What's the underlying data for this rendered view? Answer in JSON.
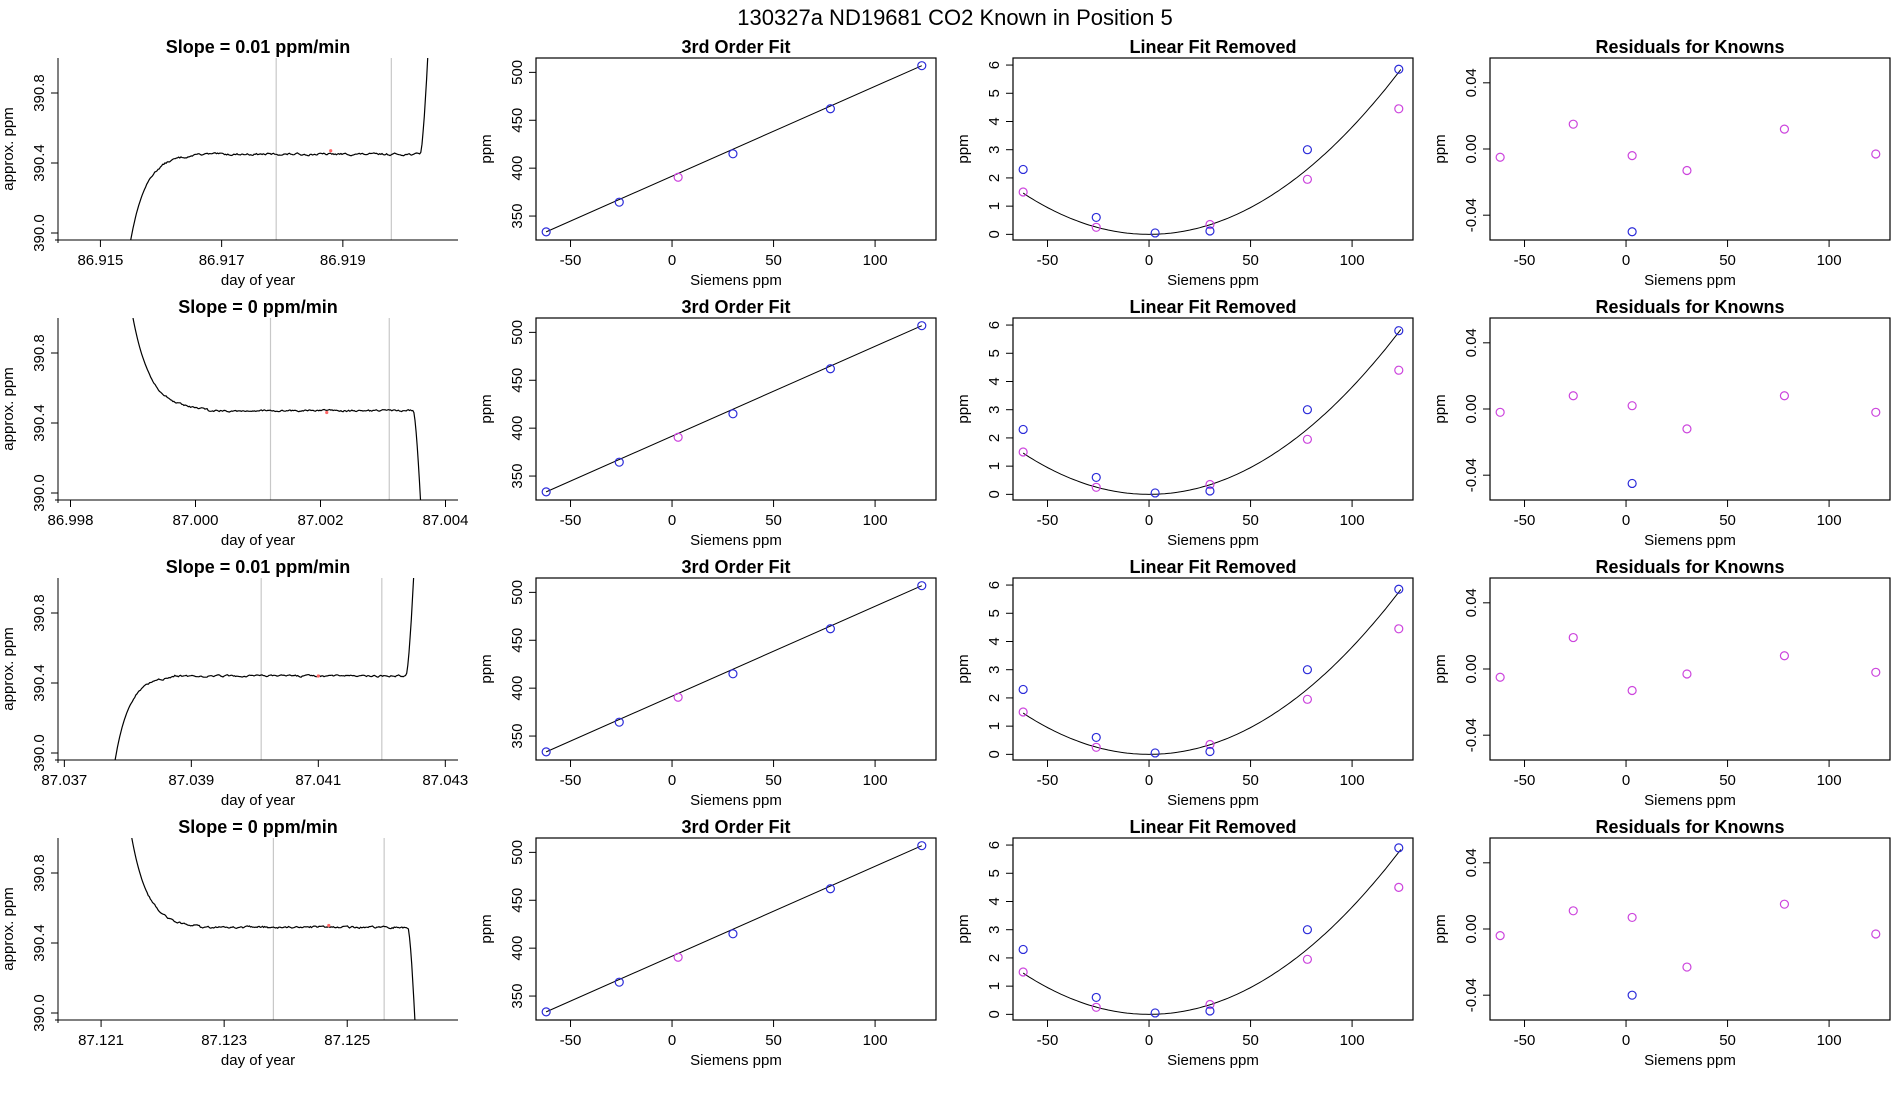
{
  "main_title": "130327a      ND19681     CO2 Known in Position  5",
  "colors": {
    "blue": "#2b2bd9",
    "magenta": "#cc44dd",
    "trace": "#000000",
    "vline": "#c8c8c8",
    "red_dot": "#ff6666"
  },
  "chart_data": [
    {
      "id": "r1-time",
      "type": "line",
      "title": "Slope =  0.01  ppm/min",
      "xlabel": "day of year",
      "ylabel": "approx. ppm",
      "xlim": [
        86.9143,
        86.9209
      ],
      "ylim": [
        389.96,
        391.0
      ],
      "xticks": [
        86.915,
        86.917,
        86.919
      ],
      "xtick_labels": [
        "86.915",
        "86.917",
        "86.919"
      ],
      "yticks": [
        390.0,
        390.4,
        390.8
      ],
      "ytick_labels": [
        "390.0",
        "390.4",
        "390.8"
      ],
      "shape": "rise",
      "x_start": 86.9155,
      "x_end": 86.9204,
      "level": 390.45,
      "start_y": 389.96,
      "end_y": 391.0,
      "rise_frac": 0.22,
      "noise": 0.012,
      "vlines": [
        86.9179,
        86.9198
      ],
      "marker": [
        86.9188,
        390.47
      ]
    },
    {
      "id": "r1-fit",
      "type": "scatter",
      "title": "3rd Order Fit",
      "xlabel": "Siemens ppm",
      "ylabel": "ppm",
      "xlim": [
        -67,
        130
      ],
      "ylim": [
        325,
        515
      ],
      "xticks": [
        -50,
        0,
        50,
        100
      ],
      "xtick_labels": [
        "-50",
        "0",
        "50",
        "100"
      ],
      "yticks": [
        350,
        400,
        450,
        500
      ],
      "ytick_labels": [
        "350",
        "400",
        "450",
        "500"
      ],
      "line": [
        [
          -62,
          333.5
        ],
        [
          123,
          507
        ]
      ],
      "points": [
        [
          -62,
          333.5,
          "blue"
        ],
        [
          -26,
          364.5,
          "blue"
        ],
        [
          3,
          390.5,
          "magenta"
        ],
        [
          30,
          415,
          "blue"
        ],
        [
          78,
          462,
          "blue"
        ],
        [
          123,
          507,
          "blue"
        ]
      ]
    },
    {
      "id": "r1-lin",
      "type": "scatter",
      "title": "Linear Fit Removed",
      "xlabel": "Siemens ppm",
      "ylabel": "ppm",
      "xlim": [
        -67,
        130
      ],
      "ylim": [
        -0.2,
        6.25
      ],
      "xticks": [
        -50,
        0,
        50,
        100
      ],
      "xtick_labels": [
        "-50",
        "0",
        "50",
        "100"
      ],
      "yticks": [
        0,
        1,
        2,
        3,
        4,
        5,
        6
      ],
      "ytick_labels": [
        "0",
        "1",
        "2",
        "3",
        "4",
        "5",
        "6"
      ],
      "curve": {
        "a": 0.00038,
        "b": 0.0,
        "c": 0.0,
        "x0": 0
      },
      "points": [
        [
          -62,
          2.3,
          "blue"
        ],
        [
          -62,
          1.5,
          "magenta"
        ],
        [
          -26,
          0.6,
          "blue"
        ],
        [
          -26,
          0.25,
          "magenta"
        ],
        [
          3,
          0.05,
          "blue"
        ],
        [
          30,
          0.35,
          "magenta"
        ],
        [
          30,
          0.12,
          "blue"
        ],
        [
          78,
          3.0,
          "blue"
        ],
        [
          78,
          1.95,
          "magenta"
        ],
        [
          123,
          5.85,
          "blue"
        ],
        [
          123,
          4.45,
          "magenta"
        ]
      ]
    },
    {
      "id": "r1-res",
      "type": "scatter",
      "title": "Residuals for Knowns",
      "xlabel": "Siemens ppm",
      "ylabel": "ppm",
      "xlim": [
        -67,
        130
      ],
      "ylim": [
        -0.055,
        0.055
      ],
      "xticks": [
        -50,
        0,
        50,
        100
      ],
      "xtick_labels": [
        "-50",
        "0",
        "50",
        "100"
      ],
      "yticks": [
        -0.04,
        0.0,
        0.04
      ],
      "ytick_labels": [
        "-0.04",
        "0.00",
        "0.04"
      ],
      "points": [
        [
          -62,
          -0.005,
          "magenta"
        ],
        [
          -26,
          0.015,
          "magenta"
        ],
        [
          3,
          -0.004,
          "magenta"
        ],
        [
          3,
          -0.05,
          "blue"
        ],
        [
          30,
          -0.013,
          "magenta"
        ],
        [
          78,
          0.012,
          "magenta"
        ],
        [
          123,
          -0.003,
          "magenta"
        ]
      ]
    },
    {
      "id": "r2-time",
      "type": "line",
      "title": "Slope =  0  ppm/min",
      "xlabel": "day of year",
      "ylabel": "approx. ppm",
      "xlim": [
        86.9978,
        87.0042
      ],
      "ylim": [
        389.96,
        391.0
      ],
      "xticks": [
        86.998,
        87.0,
        87.002,
        87.004
      ],
      "xtick_labels": [
        "86.998",
        "87.000",
        "87.002",
        "87.004"
      ],
      "yticks": [
        390.0,
        390.4,
        390.8
      ],
      "ytick_labels": [
        "390.0",
        "390.4",
        "390.8"
      ],
      "shape": "fall",
      "x_start": 86.999,
      "x_end": 87.0036,
      "level": 390.47,
      "start_y": 391.0,
      "end_y": 389.96,
      "rise_frac": 0.26,
      "noise": 0.011,
      "vlines": [
        87.0012,
        87.0031
      ],
      "marker": [
        87.0021,
        390.46
      ]
    },
    {
      "id": "r2-fit",
      "type": "scatter",
      "title": "3rd Order Fit",
      "xlabel": "Siemens ppm",
      "ylabel": "ppm",
      "xlim": [
        -67,
        130
      ],
      "ylim": [
        325,
        515
      ],
      "xticks": [
        -50,
        0,
        50,
        100
      ],
      "xtick_labels": [
        "-50",
        "0",
        "50",
        "100"
      ],
      "yticks": [
        350,
        400,
        450,
        500
      ],
      "ytick_labels": [
        "350",
        "400",
        "450",
        "500"
      ],
      "line": [
        [
          -62,
          333.5
        ],
        [
          123,
          507
        ]
      ],
      "points": [
        [
          -62,
          333.5,
          "blue"
        ],
        [
          -26,
          364.5,
          "blue"
        ],
        [
          3,
          390.5,
          "magenta"
        ],
        [
          30,
          415,
          "blue"
        ],
        [
          78,
          462,
          "blue"
        ],
        [
          123,
          507,
          "blue"
        ]
      ]
    },
    {
      "id": "r2-lin",
      "type": "scatter",
      "title": "Linear Fit Removed",
      "xlabel": "Siemens ppm",
      "ylabel": "ppm",
      "xlim": [
        -67,
        130
      ],
      "ylim": [
        -0.2,
        6.25
      ],
      "xticks": [
        -50,
        0,
        50,
        100
      ],
      "xtick_labels": [
        "-50",
        "0",
        "50",
        "100"
      ],
      "yticks": [
        0,
        1,
        2,
        3,
        4,
        5,
        6
      ],
      "ytick_labels": [
        "0",
        "1",
        "2",
        "3",
        "4",
        "5",
        "6"
      ],
      "curve": {
        "a": 0.00038,
        "b": 0.0,
        "c": 0.0,
        "x0": 0
      },
      "points": [
        [
          -62,
          2.3,
          "blue"
        ],
        [
          -62,
          1.5,
          "magenta"
        ],
        [
          -26,
          0.6,
          "blue"
        ],
        [
          -26,
          0.25,
          "magenta"
        ],
        [
          3,
          0.05,
          "blue"
        ],
        [
          30,
          0.35,
          "magenta"
        ],
        [
          30,
          0.12,
          "blue"
        ],
        [
          78,
          3.0,
          "blue"
        ],
        [
          78,
          1.95,
          "magenta"
        ],
        [
          123,
          5.8,
          "blue"
        ],
        [
          123,
          4.4,
          "magenta"
        ]
      ]
    },
    {
      "id": "r2-res",
      "type": "scatter",
      "title": "Residuals for Knowns",
      "xlabel": "Siemens ppm",
      "ylabel": "ppm",
      "xlim": [
        -67,
        130
      ],
      "ylim": [
        -0.055,
        0.055
      ],
      "xticks": [
        -50,
        0,
        50,
        100
      ],
      "xtick_labels": [
        "-50",
        "0",
        "50",
        "100"
      ],
      "yticks": [
        -0.04,
        0.0,
        0.04
      ],
      "ytick_labels": [
        "-0.04",
        "0.00",
        "0.04"
      ],
      "points": [
        [
          -62,
          -0.002,
          "magenta"
        ],
        [
          -26,
          0.008,
          "magenta"
        ],
        [
          3,
          0.002,
          "magenta"
        ],
        [
          3,
          -0.045,
          "blue"
        ],
        [
          30,
          -0.012,
          "magenta"
        ],
        [
          78,
          0.008,
          "magenta"
        ],
        [
          123,
          -0.002,
          "magenta"
        ]
      ]
    },
    {
      "id": "r3-time",
      "type": "line",
      "title": "Slope =  0.01  ppm/min",
      "xlabel": "day of year",
      "ylabel": "approx. ppm",
      "xlim": [
        87.0369,
        87.0432
      ],
      "ylim": [
        389.96,
        391.0
      ],
      "xticks": [
        87.037,
        87.039,
        87.041,
        87.043
      ],
      "xtick_labels": [
        "87.037",
        "87.039",
        "87.041",
        "87.043"
      ],
      "yticks": [
        390.0,
        390.4,
        390.8
      ],
      "ytick_labels": [
        "390.0",
        "390.4",
        "390.8"
      ],
      "shape": "rise",
      "x_start": 87.0378,
      "x_end": 87.0425,
      "level": 390.44,
      "start_y": 389.96,
      "end_y": 391.0,
      "rise_frac": 0.2,
      "noise": 0.011,
      "vlines": [
        87.0401,
        87.042
      ],
      "marker": [
        87.041,
        390.44
      ]
    },
    {
      "id": "r3-fit",
      "type": "scatter",
      "title": "3rd Order Fit",
      "xlabel": "Siemens ppm",
      "ylabel": "ppm",
      "xlim": [
        -67,
        130
      ],
      "ylim": [
        325,
        515
      ],
      "xticks": [
        -50,
        0,
        50,
        100
      ],
      "xtick_labels": [
        "-50",
        "0",
        "50",
        "100"
      ],
      "yticks": [
        350,
        400,
        450,
        500
      ],
      "ytick_labels": [
        "350",
        "400",
        "450",
        "500"
      ],
      "line": [
        [
          -62,
          333.5
        ],
        [
          123,
          507
        ]
      ],
      "points": [
        [
          -62,
          333.5,
          "blue"
        ],
        [
          -26,
          364.5,
          "blue"
        ],
        [
          3,
          390.5,
          "magenta"
        ],
        [
          30,
          415,
          "blue"
        ],
        [
          78,
          462,
          "blue"
        ],
        [
          123,
          507,
          "blue"
        ]
      ]
    },
    {
      "id": "r3-lin",
      "type": "scatter",
      "title": "Linear Fit Removed",
      "xlabel": "Siemens ppm",
      "ylabel": "ppm",
      "xlim": [
        -67,
        130
      ],
      "ylim": [
        -0.2,
        6.25
      ],
      "xticks": [
        -50,
        0,
        50,
        100
      ],
      "xtick_labels": [
        "-50",
        "0",
        "50",
        "100"
      ],
      "yticks": [
        0,
        1,
        2,
        3,
        4,
        5,
        6
      ],
      "ytick_labels": [
        "0",
        "1",
        "2",
        "3",
        "4",
        "5",
        "6"
      ],
      "curve": {
        "a": 0.00038,
        "b": 0.0,
        "c": 0.0,
        "x0": 0
      },
      "points": [
        [
          -62,
          2.3,
          "blue"
        ],
        [
          -62,
          1.5,
          "magenta"
        ],
        [
          -26,
          0.6,
          "blue"
        ],
        [
          -26,
          0.25,
          "magenta"
        ],
        [
          3,
          0.05,
          "blue"
        ],
        [
          30,
          0.35,
          "magenta"
        ],
        [
          30,
          0.1,
          "blue"
        ],
        [
          78,
          3.0,
          "blue"
        ],
        [
          78,
          1.95,
          "magenta"
        ],
        [
          123,
          5.85,
          "blue"
        ],
        [
          123,
          4.45,
          "magenta"
        ]
      ]
    },
    {
      "id": "r3-res",
      "type": "scatter",
      "title": "Residuals for Knowns",
      "xlabel": "Siemens ppm",
      "ylabel": "ppm",
      "xlim": [
        -67,
        130
      ],
      "ylim": [
        -0.055,
        0.055
      ],
      "xticks": [
        -50,
        0,
        50,
        100
      ],
      "xtick_labels": [
        "-50",
        "0",
        "50",
        "100"
      ],
      "yticks": [
        -0.04,
        0.0,
        0.04
      ],
      "ytick_labels": [
        "-0.04",
        "0.00",
        "0.04"
      ],
      "points": [
        [
          -62,
          -0.005,
          "magenta"
        ],
        [
          -26,
          0.019,
          "magenta"
        ],
        [
          3,
          -0.013,
          "magenta"
        ],
        [
          30,
          -0.003,
          "magenta"
        ],
        [
          78,
          0.008,
          "magenta"
        ],
        [
          123,
          -0.002,
          "magenta"
        ]
      ]
    },
    {
      "id": "r4-time",
      "type": "line",
      "title": "Slope =  0  ppm/min",
      "xlabel": "day of year",
      "ylabel": "approx. ppm",
      "xlim": [
        87.1203,
        87.1268
      ],
      "ylim": [
        389.96,
        391.0
      ],
      "xticks": [
        87.121,
        87.123,
        87.125
      ],
      "xtick_labels": [
        "87.121",
        "87.123",
        "87.125"
      ],
      "yticks": [
        390.0,
        390.4,
        390.8
      ],
      "ytick_labels": [
        "390.0",
        "390.4",
        "390.8"
      ],
      "shape": "fall",
      "x_start": 87.1215,
      "x_end": 87.1261,
      "level": 390.49,
      "start_y": 391.0,
      "end_y": 389.96,
      "rise_frac": 0.24,
      "noise": 0.012,
      "vlines": [
        87.1238,
        87.1256
      ],
      "marker": [
        87.1247,
        390.5
      ]
    },
    {
      "id": "r4-fit",
      "type": "scatter",
      "title": "3rd Order Fit",
      "xlabel": "Siemens ppm",
      "ylabel": "ppm",
      "xlim": [
        -67,
        130
      ],
      "ylim": [
        325,
        515
      ],
      "xticks": [
        -50,
        0,
        50,
        100
      ],
      "xtick_labels": [
        "-50",
        "0",
        "50",
        "100"
      ],
      "yticks": [
        350,
        400,
        450,
        500
      ],
      "ytick_labels": [
        "350",
        "400",
        "450",
        "500"
      ],
      "line": [
        [
          -62,
          333.5
        ],
        [
          123,
          507
        ]
      ],
      "points": [
        [
          -62,
          333.5,
          "blue"
        ],
        [
          -26,
          364.5,
          "blue"
        ],
        [
          3,
          390.5,
          "magenta"
        ],
        [
          30,
          415,
          "blue"
        ],
        [
          78,
          462,
          "blue"
        ],
        [
          123,
          507,
          "blue"
        ]
      ]
    },
    {
      "id": "r4-lin",
      "type": "scatter",
      "title": "Linear Fit Removed",
      "xlabel": "Siemens ppm",
      "ylabel": "ppm",
      "xlim": [
        -67,
        130
      ],
      "ylim": [
        -0.2,
        6.25
      ],
      "xticks": [
        -50,
        0,
        50,
        100
      ],
      "xtick_labels": [
        "-50",
        "0",
        "50",
        "100"
      ],
      "yticks": [
        0,
        1,
        2,
        3,
        4,
        5,
        6
      ],
      "ytick_labels": [
        "0",
        "1",
        "2",
        "3",
        "4",
        "5",
        "6"
      ],
      "curve": {
        "a": 0.00038,
        "b": 0.0,
        "c": 0.0,
        "x0": 0
      },
      "points": [
        [
          -62,
          2.3,
          "blue"
        ],
        [
          -62,
          1.5,
          "magenta"
        ],
        [
          -26,
          0.6,
          "blue"
        ],
        [
          -26,
          0.25,
          "magenta"
        ],
        [
          3,
          0.05,
          "blue"
        ],
        [
          30,
          0.35,
          "magenta"
        ],
        [
          30,
          0.12,
          "blue"
        ],
        [
          78,
          3.0,
          "blue"
        ],
        [
          78,
          1.95,
          "magenta"
        ],
        [
          123,
          5.9,
          "blue"
        ],
        [
          123,
          4.5,
          "magenta"
        ]
      ]
    },
    {
      "id": "r4-res",
      "type": "scatter",
      "title": "Residuals for Knowns",
      "xlabel": "Siemens ppm",
      "ylabel": "ppm",
      "xlim": [
        -67,
        130
      ],
      "ylim": [
        -0.055,
        0.055
      ],
      "xticks": [
        -50,
        0,
        50,
        100
      ],
      "xtick_labels": [
        "-50",
        "0",
        "50",
        "100"
      ],
      "yticks": [
        -0.04,
        0.0,
        0.04
      ],
      "ytick_labels": [
        "-0.04",
        "0.00",
        "0.04"
      ],
      "points": [
        [
          -62,
          -0.004,
          "magenta"
        ],
        [
          -26,
          0.011,
          "magenta"
        ],
        [
          3,
          0.007,
          "magenta"
        ],
        [
          3,
          -0.04,
          "blue"
        ],
        [
          30,
          -0.023,
          "magenta"
        ],
        [
          78,
          0.015,
          "magenta"
        ],
        [
          123,
          -0.003,
          "magenta"
        ]
      ]
    }
  ]
}
